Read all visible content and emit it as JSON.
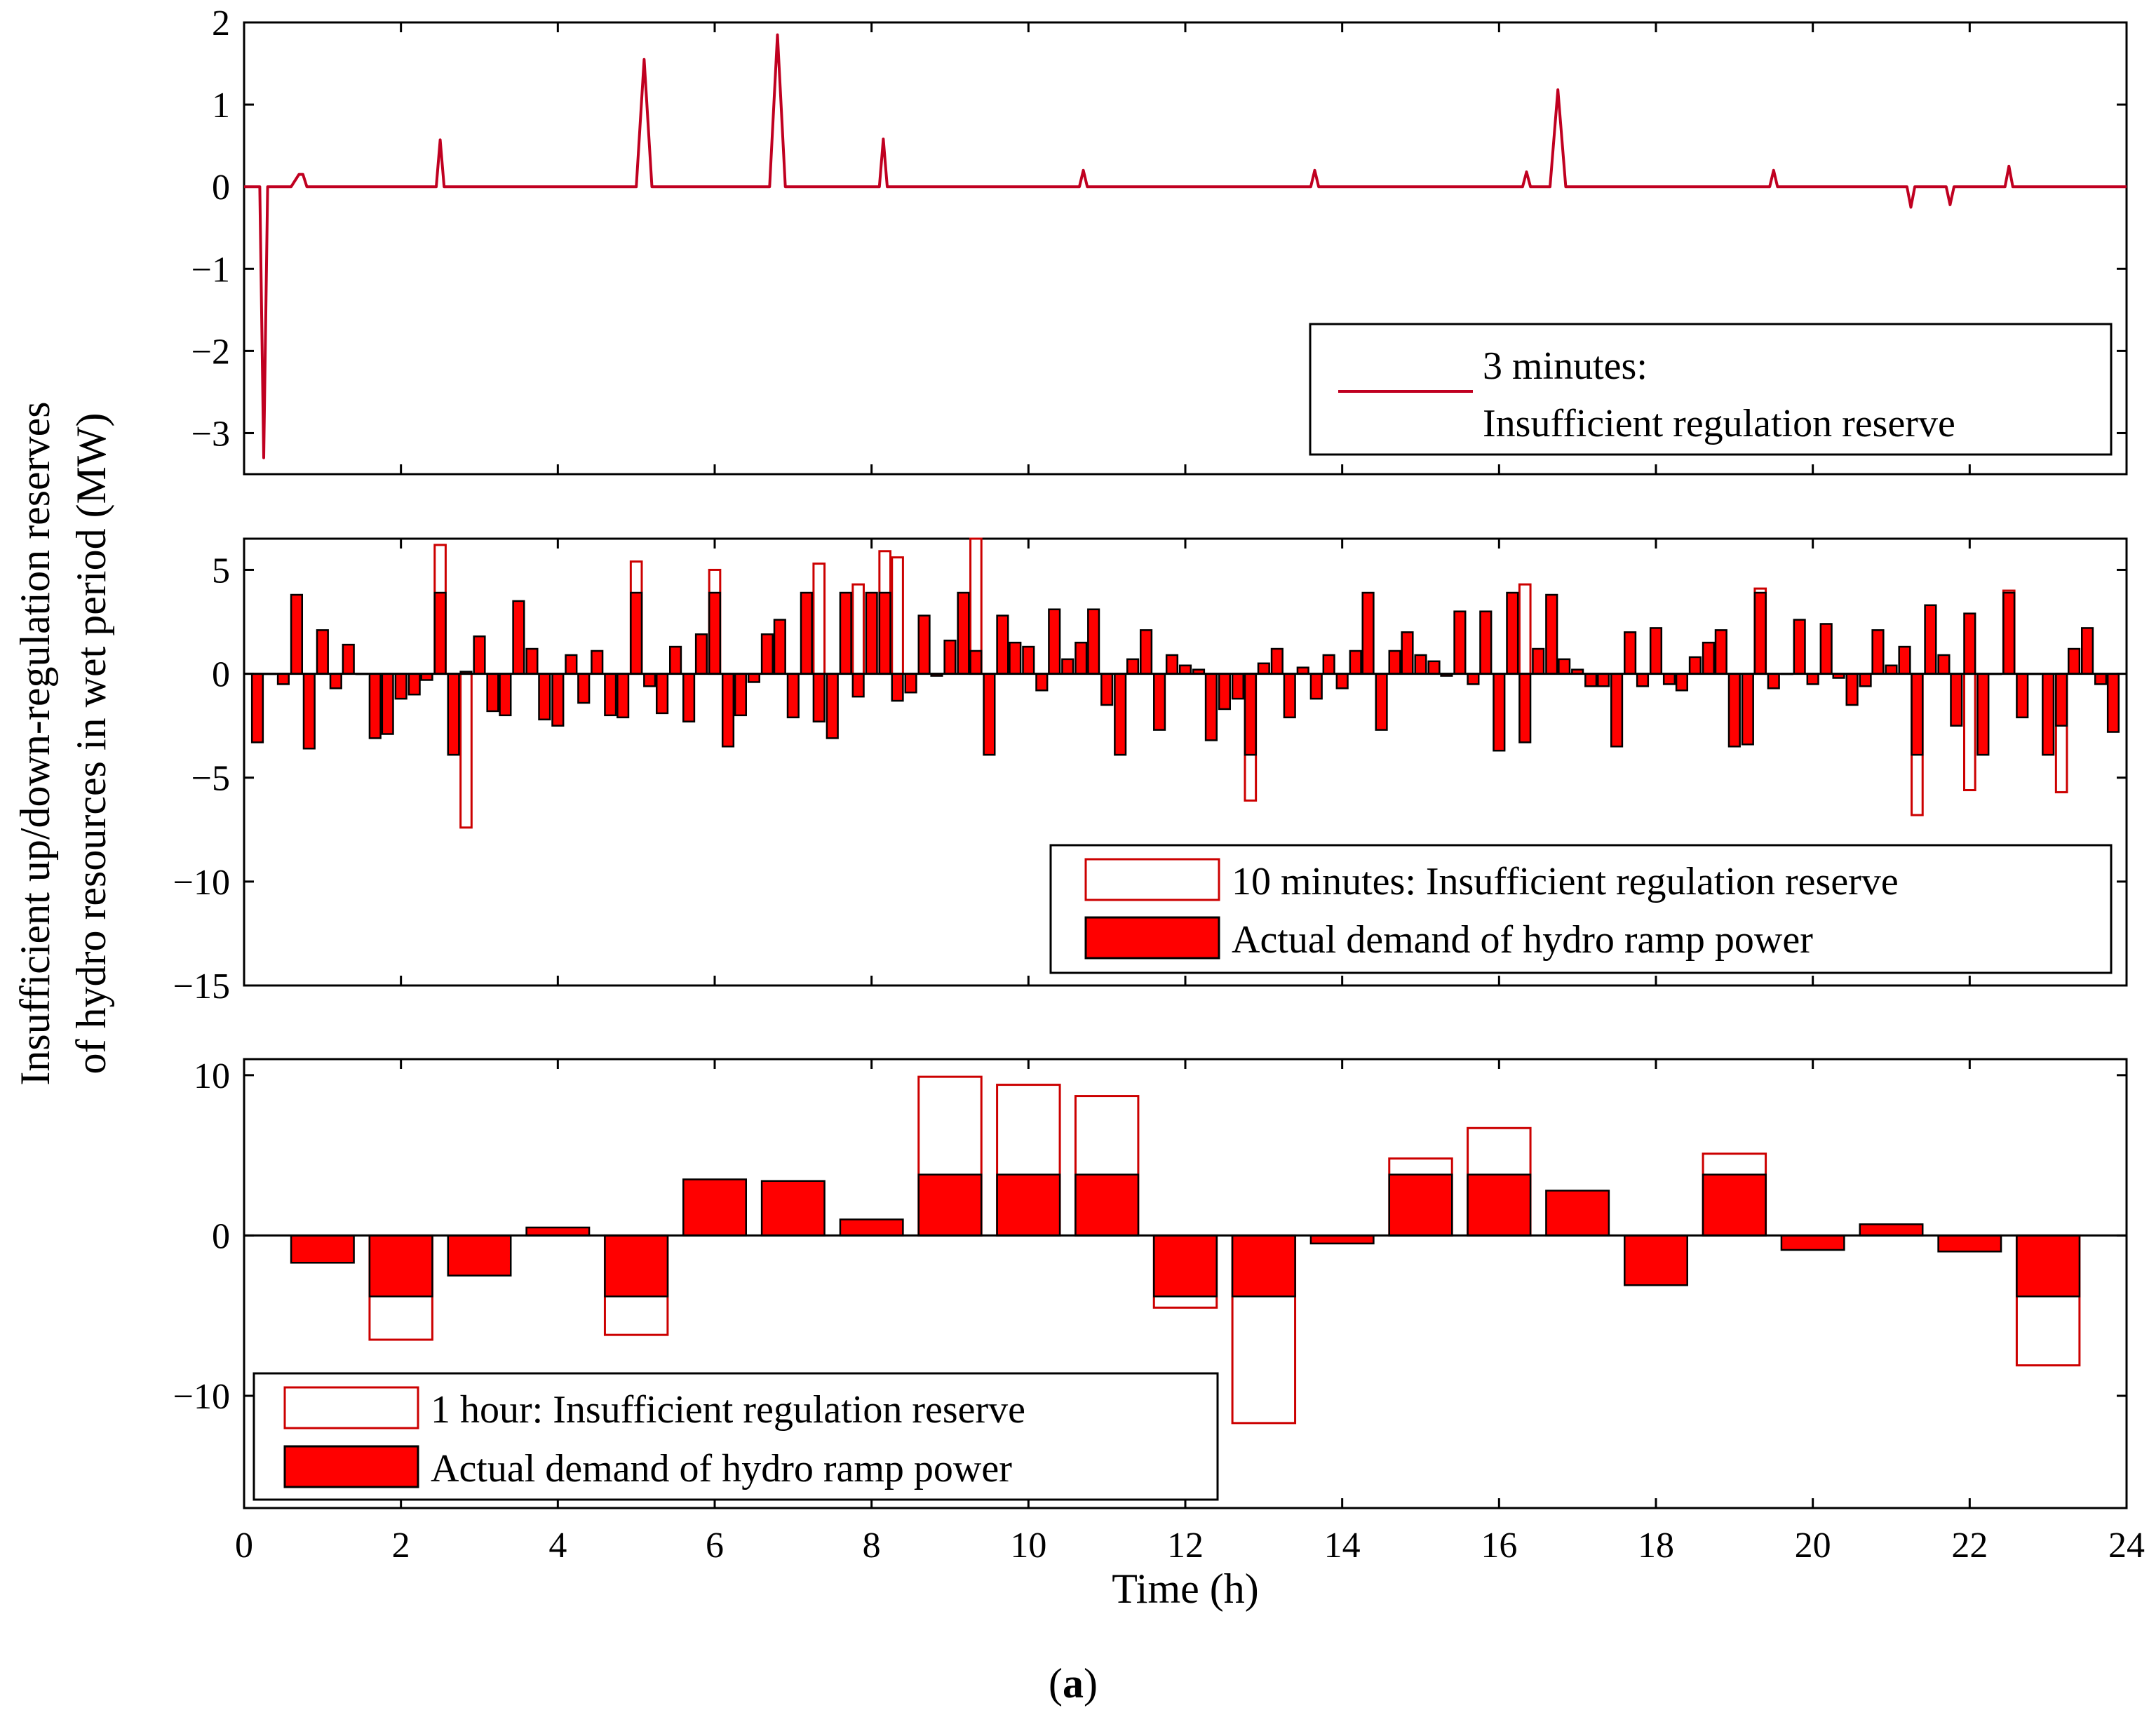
{
  "figure": {
    "ylabel_line1": "Insufficient up/down-regulation reserves",
    "ylabel_line2": "of hydro resources in wet period (MW)",
    "xlabel": "Time (h)",
    "caption_open": "(",
    "caption_letter": "a",
    "caption_close": ")"
  },
  "colors": {
    "accent": "#ff0000",
    "outline": "#cc0000",
    "axis": "#000000",
    "line": "#c00020"
  },
  "chart_data": [
    {
      "type": "line",
      "title": "",
      "xlabel": "Time (h)",
      "xlim": [
        0,
        24
      ],
      "ylim": [
        -3.5,
        2
      ],
      "x_ticks": [
        0,
        2,
        4,
        6,
        8,
        10,
        12,
        14,
        16,
        18,
        20,
        22,
        24
      ],
      "y_ticks": [
        2,
        1,
        0,
        -1,
        -2,
        -3
      ],
      "y_tick_labels": [
        "2",
        "1",
        "0",
        "−1",
        "−2",
        "−3"
      ],
      "legend": {
        "placement": "bottom-right",
        "line1": "3 minutes:",
        "line2": "Insufficient regulation reserve"
      },
      "series": [
        {
          "name": "3 minutes: Insufficient regulation reserve",
          "x": [
            0,
            0.2,
            0.25,
            0.3,
            0.6,
            0.7,
            0.75,
            0.8,
            2.45,
            2.5,
            2.55,
            5.0,
            5.1,
            5.2,
            6.7,
            6.8,
            6.9,
            8.1,
            8.15,
            8.2,
            10.65,
            10.7,
            10.75,
            13.6,
            13.65,
            13.7,
            16.3,
            16.35,
            16.4,
            16.65,
            16.75,
            16.85,
            19.45,
            19.5,
            19.55,
            21.2,
            21.25,
            21.3,
            21.7,
            21.75,
            21.8,
            22.45,
            22.5,
            22.55,
            24
          ],
          "y": [
            0,
            0,
            -3.3,
            0,
            0,
            0.15,
            0.15,
            0,
            0,
            0.57,
            0,
            0,
            1.55,
            0,
            0,
            1.85,
            0,
            0,
            0.58,
            0,
            0,
            0.2,
            0,
            0,
            0.2,
            0,
            0,
            0.18,
            0,
            0,
            1.18,
            0,
            0,
            0.2,
            0,
            0,
            -0.25,
            0,
            0,
            -0.22,
            0,
            0,
            0.25,
            0,
            0
          ]
        }
      ]
    },
    {
      "type": "bar",
      "title": "",
      "xlabel": "Time (h)",
      "xlim": [
        0,
        24
      ],
      "ylim": [
        -15,
        6.5
      ],
      "x_ticks": [
        0,
        2,
        4,
        6,
        8,
        10,
        12,
        14,
        16,
        18,
        20,
        22,
        24
      ],
      "y_ticks": [
        5,
        0,
        -5,
        -10,
        -15
      ],
      "y_tick_labels": [
        "5",
        "0",
        "−5",
        "−10",
        "−15"
      ],
      "bar_width_h": 0.14,
      "legend": {
        "placement": "bottom-right",
        "outline_label": "10 minutes: Insufficient regulation reserve",
        "filled_label": "Actual demand of hydro ramp power"
      },
      "series": [
        {
          "name": "Actual demand of hydro ramp power",
          "x": [
            0.17,
            0.33,
            0.5,
            0.67,
            0.83,
            1.0,
            1.17,
            1.33,
            1.5,
            1.67,
            1.83,
            2.0,
            2.17,
            2.33,
            2.5,
            2.67,
            2.83,
            3.0,
            3.17,
            3.33,
            3.5,
            3.67,
            3.83,
            4.0,
            4.17,
            4.33,
            4.5,
            4.67,
            4.83,
            5.0,
            5.17,
            5.33,
            5.5,
            5.67,
            5.83,
            6.0,
            6.17,
            6.33,
            6.5,
            6.67,
            6.83,
            7.0,
            7.17,
            7.33,
            7.5,
            7.67,
            7.83,
            8.0,
            8.17,
            8.33,
            8.5,
            8.67,
            8.83,
            9.0,
            9.17,
            9.33,
            9.5,
            9.67,
            9.83,
            10.0,
            10.17,
            10.33,
            10.5,
            10.67,
            10.83,
            11.0,
            11.17,
            11.33,
            11.5,
            11.67,
            11.83,
            12.0,
            12.17,
            12.33,
            12.5,
            12.67,
            12.83,
            13.0,
            13.17,
            13.33,
            13.5,
            13.67,
            13.83,
            14.0,
            14.17,
            14.33,
            14.5,
            14.67,
            14.83,
            15.0,
            15.17,
            15.33,
            15.5,
            15.67,
            15.83,
            16.0,
            16.17,
            16.33,
            16.5,
            16.67,
            16.83,
            17.0,
            17.17,
            17.33,
            17.5,
            17.67,
            17.83,
            18.0,
            18.17,
            18.33,
            18.5,
            18.67,
            18.83,
            19.0,
            19.17,
            19.33,
            19.5,
            19.67,
            19.83,
            20.0,
            20.17,
            20.33,
            20.5,
            20.67,
            20.83,
            21.0,
            21.17,
            21.33,
            21.5,
            21.67,
            21.83,
            22.0,
            22.17,
            22.33,
            22.5,
            22.67,
            22.83,
            23.0,
            23.17,
            23.33,
            23.5,
            23.67,
            23.83
          ],
          "values": [
            -3.3,
            0,
            -0.5,
            3.8,
            -3.6,
            2.1,
            -0.7,
            1.4,
            0,
            -3.1,
            -2.9,
            -1.2,
            -1.0,
            -0.3,
            3.9,
            -3.9,
            0.1,
            1.8,
            -1.8,
            -2.0,
            3.5,
            1.2,
            -2.2,
            -2.5,
            0.9,
            -1.4,
            1.1,
            -2.0,
            -2.1,
            3.9,
            -0.6,
            -1.9,
            1.3,
            -2.3,
            1.9,
            3.9,
            -3.5,
            -2.0,
            -0.4,
            1.9,
            2.6,
            -2.1,
            3.9,
            -2.3,
            -3.1,
            3.9,
            -1.1,
            3.9,
            3.9,
            -1.3,
            -0.9,
            2.8,
            -0.1,
            1.6,
            3.9,
            1.1,
            -3.9,
            2.8,
            1.5,
            1.3,
            -0.8,
            3.1,
            0.7,
            1.5,
            3.1,
            -1.5,
            -3.9,
            0.7,
            2.1,
            -2.7,
            0.9,
            0.4,
            0.2,
            -3.2,
            -1.7,
            -1.2,
            -3.9,
            0.5,
            1.2,
            -2.1,
            0.3,
            -1.2,
            0.9,
            -0.7,
            1.1,
            3.9,
            -2.7,
            1.1,
            2.0,
            0.9,
            0.6,
            -0.1,
            3.0,
            -0.5,
            3.0,
            -3.7,
            3.9,
            -3.3,
            1.2,
            3.8,
            0.7,
            0.2,
            -0.6,
            -0.6,
            -3.5,
            2.0,
            -0.6,
            2.2,
            -0.5,
            -0.8,
            0.8,
            1.5,
            2.1,
            -3.5,
            -3.4,
            3.9,
            -0.7,
            0,
            2.6,
            -0.5,
            2.4,
            -0.2,
            -1.5,
            -0.6,
            2.1,
            0.4,
            1.3,
            -3.9,
            3.3,
            0.9,
            -2.5,
            2.9,
            -3.9,
            0,
            3.9,
            -2.1,
            0,
            -3.9,
            -2.5,
            1.2,
            2.2,
            -0.5,
            -2.8
          ]
        },
        {
          "name": "10 minutes: Insufficient regulation reserve",
          "x": [
            2.5,
            2.83,
            5.0,
            6.0,
            7.33,
            7.83,
            8.17,
            8.33,
            9.33,
            12.83,
            16.33,
            19.33,
            21.33,
            22.0,
            22.5,
            23.17
          ],
          "values": [
            6.2,
            -7.4,
            5.4,
            5.0,
            5.3,
            4.3,
            5.9,
            5.6,
            6.5,
            -6.1,
            4.3,
            4.1,
            -6.8,
            -5.6,
            4.0,
            -5.7
          ]
        }
      ]
    },
    {
      "type": "bar",
      "title": "",
      "xlabel": "Time (h)",
      "xlim": [
        0,
        24
      ],
      "ylim": [
        -17,
        11
      ],
      "x_ticks": [
        0,
        2,
        4,
        6,
        8,
        10,
        12,
        14,
        16,
        18,
        20,
        22,
        24
      ],
      "x_tick_labels": [
        "0",
        "2",
        "4",
        "6",
        "8",
        "10",
        "12",
        "14",
        "16",
        "18",
        "20",
        "22",
        "24"
      ],
      "y_ticks": [
        10,
        0,
        -10
      ],
      "y_tick_labels": [
        "10",
        "0",
        "−10"
      ],
      "bar_width_h": 0.8,
      "legend": {
        "placement": "bottom-left",
        "outline_label": "1 hour: Insufficient regulation reserve",
        "filled_label": "Actual demand of hydro ramp power"
      },
      "series": [
        {
          "name": "Actual demand of hydro ramp power",
          "x": [
            1,
            2,
            3,
            4,
            5,
            6,
            7,
            8,
            9,
            10,
            11,
            12,
            13,
            14,
            15,
            16,
            17,
            18,
            19,
            20,
            21,
            22,
            23
          ],
          "values": [
            -1.7,
            -3.8,
            -2.5,
            0.5,
            -3.8,
            3.5,
            3.4,
            1.0,
            3.8,
            3.8,
            3.8,
            -3.8,
            -3.8,
            -0.5,
            3.8,
            3.8,
            2.8,
            -3.1,
            3.8,
            -0.9,
            0.7,
            -1.0,
            -3.8
          ]
        },
        {
          "name": "1 hour: Insufficient regulation reserve",
          "x": [
            2,
            5,
            9,
            10,
            11,
            12,
            13,
            15,
            16,
            19,
            23
          ],
          "values": [
            -6.5,
            -6.2,
            9.9,
            9.4,
            8.7,
            -4.5,
            -11.7,
            4.8,
            6.7,
            5.1,
            -8.1
          ]
        }
      ]
    }
  ]
}
